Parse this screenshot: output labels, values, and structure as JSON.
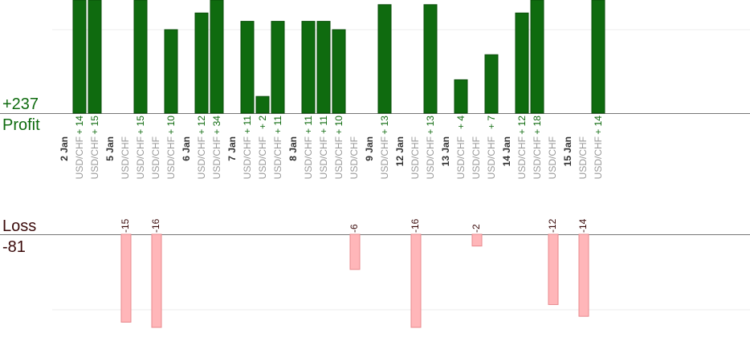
{
  "summary": {
    "profit_label": "Profit",
    "profit_total": "+237",
    "loss_label": "Loss",
    "loss_total": "-81"
  },
  "colors": {
    "profit_bar": "#0f6b0f",
    "profit_bar_edge": "#0a4d0a",
    "profit_text": "#0f6b0f",
    "loss_bar": "#ffb6b9",
    "loss_bar_edge": "#e8898d",
    "loss_text": "#3a0a0a",
    "category_text": "#999999",
    "date_text": "#333333",
    "grid": "#eeeeee",
    "axis": "#777777"
  },
  "chart_data": {
    "type": "bar",
    "description_units": "pips",
    "profit_ylim": [
      0,
      14.5
    ],
    "loss_ylim": [
      0,
      16
    ],
    "columns": [
      {
        "date": "2 Jan",
        "symbol": "",
        "profit": null,
        "loss": null
      },
      {
        "date": "",
        "symbol": "USD/CHF",
        "profit": 14,
        "loss": null
      },
      {
        "date": "",
        "symbol": "USD/CHF",
        "profit": 15,
        "loss": null
      },
      {
        "date": "5 Jan",
        "symbol": "",
        "profit": null,
        "loss": null
      },
      {
        "date": "",
        "symbol": "USD/CHF",
        "profit": null,
        "loss": -15
      },
      {
        "date": "",
        "symbol": "USD/CHF",
        "profit": 15,
        "loss": null
      },
      {
        "date": "",
        "symbol": "USD/CHF",
        "profit": null,
        "loss": -16
      },
      {
        "date": "",
        "symbol": "USD/CHF",
        "profit": 10,
        "loss": null
      },
      {
        "date": "6 Jan",
        "symbol": "",
        "profit": null,
        "loss": null
      },
      {
        "date": "",
        "symbol": "USD/CHF",
        "profit": 12,
        "loss": null
      },
      {
        "date": "",
        "symbol": "USD/CHF",
        "profit": 34,
        "loss": null
      },
      {
        "date": "7 Jan",
        "symbol": "",
        "profit": null,
        "loss": null
      },
      {
        "date": "",
        "symbol": "USD/CHF",
        "profit": 11,
        "loss": null
      },
      {
        "date": "",
        "symbol": "USD/CHF",
        "profit": 2,
        "loss": null
      },
      {
        "date": "",
        "symbol": "USD/CHF",
        "profit": 11,
        "loss": null
      },
      {
        "date": "8 Jan",
        "symbol": "",
        "profit": null,
        "loss": null
      },
      {
        "date": "",
        "symbol": "USD/CHF",
        "profit": 11,
        "loss": null
      },
      {
        "date": "",
        "symbol": "USD/CHF",
        "profit": 11,
        "loss": null
      },
      {
        "date": "",
        "symbol": "USD/CHF",
        "profit": 10,
        "loss": null
      },
      {
        "date": "",
        "symbol": "USD/CHF",
        "profit": null,
        "loss": -6
      },
      {
        "date": "9 Jan",
        "symbol": "",
        "profit": null,
        "loss": null
      },
      {
        "date": "",
        "symbol": "USD/CHF",
        "profit": 13,
        "loss": null
      },
      {
        "date": "12 Jan",
        "symbol": "",
        "profit": null,
        "loss": null
      },
      {
        "date": "",
        "symbol": "USD/CHF",
        "profit": null,
        "loss": -16
      },
      {
        "date": "",
        "symbol": "USD/CHF",
        "profit": 13,
        "loss": null
      },
      {
        "date": "13 Jan",
        "symbol": "",
        "profit": null,
        "loss": null
      },
      {
        "date": "",
        "symbol": "USD/CHF",
        "profit": 4,
        "loss": null
      },
      {
        "date": "",
        "symbol": "USD/CHF",
        "profit": null,
        "loss": -2
      },
      {
        "date": "",
        "symbol": "USD/CHF",
        "profit": 7,
        "loss": null
      },
      {
        "date": "14 Jan",
        "symbol": "",
        "profit": null,
        "loss": null
      },
      {
        "date": "",
        "symbol": "USD/CHF",
        "profit": 12,
        "loss": null
      },
      {
        "date": "",
        "symbol": "USD/CHF",
        "profit": 18,
        "loss": null
      },
      {
        "date": "",
        "symbol": "USD/CHF",
        "profit": null,
        "loss": -12
      },
      {
        "date": "15 Jan",
        "symbol": "",
        "profit": null,
        "loss": null
      },
      {
        "date": "",
        "symbol": "USD/CHF",
        "profit": null,
        "loss": -14
      },
      {
        "date": "",
        "symbol": "USD/CHF",
        "profit": 14,
        "loss": null
      }
    ]
  }
}
